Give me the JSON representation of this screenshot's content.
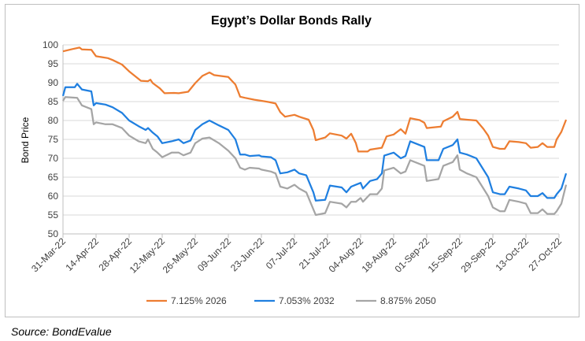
{
  "source": "Source: BondEvalue",
  "chart_data": {
    "type": "line",
    "title": "Egypt’s Dollar Bonds Rally",
    "ylabel": "Bond Price",
    "xlabel": "",
    "ylim": [
      50,
      100
    ],
    "yticks": [
      50,
      55,
      60,
      65,
      70,
      75,
      80,
      85,
      90,
      95,
      100
    ],
    "grid": "horizontal",
    "legend_position": "bottom",
    "x_tick_labels": [
      "31-Mar-22",
      "14-Apr-22",
      "28-Apr-22",
      "12-May-22",
      "26-May-22",
      "09-Jun-22",
      "23-Jun-22",
      "07-Jul-22",
      "21-Jul-22",
      "04-Aug-22",
      "18-Aug-22",
      "01-Sep-22",
      "15-Sep-22",
      "29-Sep-22",
      "13-Oct-22",
      "27-Oct-22"
    ],
    "series": [
      {
        "name": "7.125% 2026",
        "color": "#ED7D31",
        "points": [
          [
            "31-Mar-22",
            98.3
          ],
          [
            "04-Apr-22",
            98.9
          ],
          [
            "07-Apr-22",
            99.3
          ],
          [
            "08-Apr-22",
            98.8
          ],
          [
            "12-Apr-22",
            98.7
          ],
          [
            "14-Apr-22",
            97.0
          ],
          [
            "19-Apr-22",
            96.5
          ],
          [
            "21-Apr-22",
            96.0
          ],
          [
            "25-Apr-22",
            94.8
          ],
          [
            "28-Apr-22",
            93.0
          ],
          [
            "03-May-22",
            90.5
          ],
          [
            "06-May-22",
            90.4
          ],
          [
            "07-May-22",
            90.8
          ],
          [
            "08-May-22",
            89.9
          ],
          [
            "11-May-22",
            88.5
          ],
          [
            "13-May-22",
            87.2
          ],
          [
            "17-May-22",
            87.3
          ],
          [
            "19-May-22",
            87.2
          ],
          [
            "23-May-22",
            87.6
          ],
          [
            "26-May-22",
            89.9
          ],
          [
            "29-May-22",
            91.8
          ],
          [
            "01-Jun-22",
            92.7
          ],
          [
            "03-Jun-22",
            92.0
          ],
          [
            "09-Jun-22",
            91.5
          ],
          [
            "12-Jun-22",
            89.5
          ],
          [
            "14-Jun-22",
            86.3
          ],
          [
            "16-Jun-22",
            86.0
          ],
          [
            "20-Jun-22",
            85.5
          ],
          [
            "23-Jun-22",
            85.2
          ],
          [
            "26-Jun-22",
            84.9
          ],
          [
            "29-Jun-22",
            84.5
          ],
          [
            "01-Jul-22",
            82.2
          ],
          [
            "03-Jul-22",
            81.0
          ],
          [
            "07-Jul-22",
            81.5
          ],
          [
            "09-Jul-22",
            81.0
          ],
          [
            "13-Jul-22",
            80.2
          ],
          [
            "15-Jul-22",
            77.5
          ],
          [
            "16-Jul-22",
            74.8
          ],
          [
            "20-Jul-22",
            75.5
          ],
          [
            "22-Jul-22",
            76.6
          ],
          [
            "27-Jul-22",
            76.0
          ],
          [
            "29-Jul-22",
            75.2
          ],
          [
            "31-Jul-22",
            76.5
          ],
          [
            "02-Aug-22",
            74.0
          ],
          [
            "03-Aug-22",
            71.8
          ],
          [
            "07-Aug-22",
            71.8
          ],
          [
            "08-Aug-22",
            72.3
          ],
          [
            "13-Aug-22",
            72.8
          ],
          [
            "15-Aug-22",
            75.8
          ],
          [
            "18-Aug-22",
            76.3
          ],
          [
            "21-Aug-22",
            77.7
          ],
          [
            "23-Aug-22",
            76.5
          ],
          [
            "25-Aug-22",
            80.6
          ],
          [
            "29-Aug-22",
            80.1
          ],
          [
            "31-Aug-22",
            79.4
          ],
          [
            "01-Sep-22",
            78.0
          ],
          [
            "07-Sep-22",
            78.4
          ],
          [
            "08-Sep-22",
            79.8
          ],
          [
            "12-Sep-22",
            81.0
          ],
          [
            "14-Sep-22",
            82.3
          ],
          [
            "15-Sep-22",
            80.4
          ],
          [
            "18-Sep-22",
            80.2
          ],
          [
            "22-Sep-22",
            80.0
          ],
          [
            "25-Sep-22",
            77.8
          ],
          [
            "27-Sep-22",
            76.0
          ],
          [
            "29-Sep-22",
            73.0
          ],
          [
            "02-Oct-22",
            72.5
          ],
          [
            "04-Oct-22",
            72.5
          ],
          [
            "06-Oct-22",
            74.5
          ],
          [
            "10-Oct-22",
            74.3
          ],
          [
            "13-Oct-22",
            74.0
          ],
          [
            "15-Oct-22",
            72.8
          ],
          [
            "18-Oct-22",
            73.0
          ],
          [
            "20-Oct-22",
            74.0
          ],
          [
            "22-Oct-22",
            73.0
          ],
          [
            "25-Oct-22",
            73.0
          ],
          [
            "26-Oct-22",
            75.0
          ],
          [
            "28-Oct-22",
            77.0
          ],
          [
            "30-Oct-22",
            80.2
          ]
        ]
      },
      {
        "name": "7.053% 2032",
        "color": "#1F7FE0",
        "points": [
          [
            "31-Mar-22",
            86.5
          ],
          [
            "01-Apr-22",
            88.8
          ],
          [
            "05-Apr-22",
            88.8
          ],
          [
            "06-Apr-22",
            89.7
          ],
          [
            "08-Apr-22",
            88.2
          ],
          [
            "12-Apr-22",
            87.7
          ],
          [
            "13-Apr-22",
            84.0
          ],
          [
            "14-Apr-22",
            84.6
          ],
          [
            "18-Apr-22",
            84.2
          ],
          [
            "21-Apr-22",
            83.5
          ],
          [
            "25-Apr-22",
            82.0
          ],
          [
            "28-Apr-22",
            80.0
          ],
          [
            "02-May-22",
            78.5
          ],
          [
            "05-May-22",
            77.5
          ],
          [
            "06-May-22",
            78.0
          ],
          [
            "08-May-22",
            76.8
          ],
          [
            "10-May-22",
            75.8
          ],
          [
            "12-May-22",
            74.0
          ],
          [
            "16-May-22",
            74.5
          ],
          [
            "19-May-22",
            75.0
          ],
          [
            "21-May-22",
            74.0
          ],
          [
            "24-May-22",
            74.7
          ],
          [
            "26-May-22",
            77.5
          ],
          [
            "29-May-22",
            79.0
          ],
          [
            "01-Jun-22",
            80.0
          ],
          [
            "05-Jun-22",
            78.7
          ],
          [
            "09-Jun-22",
            77.5
          ],
          [
            "12-Jun-22",
            75.0
          ],
          [
            "14-Jun-22",
            71.0
          ],
          [
            "16-Jun-22",
            71.0
          ],
          [
            "18-Jun-22",
            70.6
          ],
          [
            "22-Jun-22",
            70.8
          ],
          [
            "23-Jun-22",
            70.5
          ],
          [
            "27-Jun-22",
            70.3
          ],
          [
            "29-Jun-22",
            69.5
          ],
          [
            "01-Jul-22",
            66.0
          ],
          [
            "04-Jul-22",
            66.3
          ],
          [
            "07-Jul-22",
            67.0
          ],
          [
            "09-Jul-22",
            66.0
          ],
          [
            "12-Jul-22",
            65.5
          ],
          [
            "15-Jul-22",
            61.0
          ],
          [
            "16-Jul-22",
            58.8
          ],
          [
            "20-Jul-22",
            59.0
          ],
          [
            "22-Jul-22",
            62.8
          ],
          [
            "27-Jul-22",
            62.3
          ],
          [
            "29-Jul-22",
            61.0
          ],
          [
            "31-Jul-22",
            62.5
          ],
          [
            "02-Aug-22",
            63.0
          ],
          [
            "04-Aug-22",
            63.5
          ],
          [
            "05-Aug-22",
            62.0
          ],
          [
            "08-Aug-22",
            64.0
          ],
          [
            "11-Aug-22",
            64.5
          ],
          [
            "13-Aug-22",
            66.0
          ],
          [
            "14-Aug-22",
            70.7
          ],
          [
            "18-Aug-22",
            71.5
          ],
          [
            "21-Aug-22",
            70.0
          ],
          [
            "23-Aug-22",
            70.6
          ],
          [
            "25-Aug-22",
            74.5
          ],
          [
            "29-Aug-22",
            73.5
          ],
          [
            "31-Aug-22",
            73.0
          ],
          [
            "01-Sep-22",
            69.5
          ],
          [
            "06-Sep-22",
            69.5
          ],
          [
            "08-Sep-22",
            72.5
          ],
          [
            "12-Sep-22",
            73.5
          ],
          [
            "14-Sep-22",
            75.0
          ],
          [
            "15-Sep-22",
            71.5
          ],
          [
            "18-Sep-22",
            71.0
          ],
          [
            "22-Sep-22",
            70.0
          ],
          [
            "25-Sep-22",
            67.0
          ],
          [
            "27-Sep-22",
            65.0
          ],
          [
            "29-Sep-22",
            61.0
          ],
          [
            "02-Oct-22",
            60.5
          ],
          [
            "04-Oct-22",
            60.5
          ],
          [
            "06-Oct-22",
            62.5
          ],
          [
            "10-Oct-22",
            62.0
          ],
          [
            "13-Oct-22",
            61.5
          ],
          [
            "15-Oct-22",
            60.0
          ],
          [
            "18-Oct-22",
            60.0
          ],
          [
            "20-Oct-22",
            60.8
          ],
          [
            "22-Oct-22",
            59.5
          ],
          [
            "25-Oct-22",
            59.5
          ],
          [
            "26-Oct-22",
            60.5
          ],
          [
            "28-Oct-22",
            62.0
          ],
          [
            "30-Oct-22",
            66.0
          ]
        ]
      },
      {
        "name": "8.875% 2050",
        "color": "#A5A5A5",
        "points": [
          [
            "31-Mar-22",
            85.2
          ],
          [
            "01-Apr-22",
            86.2
          ],
          [
            "06-Apr-22",
            86.0
          ],
          [
            "08-Apr-22",
            84.0
          ],
          [
            "12-Apr-22",
            83.0
          ],
          [
            "13-Apr-22",
            79.0
          ],
          [
            "14-Apr-22",
            79.5
          ],
          [
            "18-Apr-22",
            79.0
          ],
          [
            "21-Apr-22",
            79.0
          ],
          [
            "25-Apr-22",
            78.0
          ],
          [
            "28-Apr-22",
            76.0
          ],
          [
            "02-May-22",
            74.5
          ],
          [
            "05-May-22",
            74.0
          ],
          [
            "06-May-22",
            75.0
          ],
          [
            "08-May-22",
            72.5
          ],
          [
            "10-May-22",
            71.5
          ],
          [
            "12-May-22",
            70.3
          ],
          [
            "16-May-22",
            71.5
          ],
          [
            "19-May-22",
            71.5
          ],
          [
            "21-May-22",
            70.8
          ],
          [
            "24-May-22",
            71.5
          ],
          [
            "26-May-22",
            74.0
          ],
          [
            "29-May-22",
            75.2
          ],
          [
            "01-Jun-22",
            75.5
          ],
          [
            "05-Jun-22",
            74.0
          ],
          [
            "09-Jun-22",
            72.0
          ],
          [
            "12-Jun-22",
            70.0
          ],
          [
            "14-Jun-22",
            67.5
          ],
          [
            "16-Jun-22",
            67.0
          ],
          [
            "18-Jun-22",
            67.5
          ],
          [
            "22-Jun-22",
            67.3
          ],
          [
            "23-Jun-22",
            67.0
          ],
          [
            "27-Jun-22",
            66.5
          ],
          [
            "29-Jun-22",
            66.0
          ],
          [
            "01-Jul-22",
            62.5
          ],
          [
            "04-Jul-22",
            62.0
          ],
          [
            "07-Jul-22",
            63.0
          ],
          [
            "09-Jul-22",
            62.0
          ],
          [
            "12-Jul-22",
            61.0
          ],
          [
            "15-Jul-22",
            56.5
          ],
          [
            "16-Jul-22",
            55.0
          ],
          [
            "20-Jul-22",
            55.5
          ],
          [
            "22-Jul-22",
            58.5
          ],
          [
            "27-Jul-22",
            58.0
          ],
          [
            "29-Jul-22",
            57.0
          ],
          [
            "31-Jul-22",
            58.5
          ],
          [
            "02-Aug-22",
            58.5
          ],
          [
            "04-Aug-22",
            59.5
          ],
          [
            "05-Aug-22",
            58.5
          ],
          [
            "08-Aug-22",
            60.5
          ],
          [
            "11-Aug-22",
            60.5
          ],
          [
            "13-Aug-22",
            62.0
          ],
          [
            "14-Aug-22",
            66.8
          ],
          [
            "18-Aug-22",
            67.5
          ],
          [
            "21-Aug-22",
            66.0
          ],
          [
            "23-Aug-22",
            66.5
          ],
          [
            "25-Aug-22",
            69.5
          ],
          [
            "29-Aug-22",
            68.5
          ],
          [
            "31-Aug-22",
            68.0
          ],
          [
            "01-Sep-22",
            64.0
          ],
          [
            "06-Sep-22",
            64.5
          ],
          [
            "08-Sep-22",
            68.0
          ],
          [
            "12-Sep-22",
            69.0
          ],
          [
            "14-Sep-22",
            70.8
          ],
          [
            "15-Sep-22",
            67.0
          ],
          [
            "18-Sep-22",
            66.0
          ],
          [
            "22-Sep-22",
            65.0
          ],
          [
            "25-Sep-22",
            62.0
          ],
          [
            "27-Sep-22",
            60.0
          ],
          [
            "29-Sep-22",
            57.0
          ],
          [
            "02-Oct-22",
            56.0
          ],
          [
            "04-Oct-22",
            56.0
          ],
          [
            "06-Oct-22",
            59.0
          ],
          [
            "10-Oct-22",
            58.5
          ],
          [
            "13-Oct-22",
            58.0
          ],
          [
            "15-Oct-22",
            55.5
          ],
          [
            "18-Oct-22",
            55.5
          ],
          [
            "20-Oct-22",
            56.5
          ],
          [
            "22-Oct-22",
            55.3
          ],
          [
            "25-Oct-22",
            55.3
          ],
          [
            "26-Oct-22",
            56.0
          ],
          [
            "28-Oct-22",
            58.0
          ],
          [
            "30-Oct-22",
            63.0
          ]
        ]
      }
    ]
  }
}
